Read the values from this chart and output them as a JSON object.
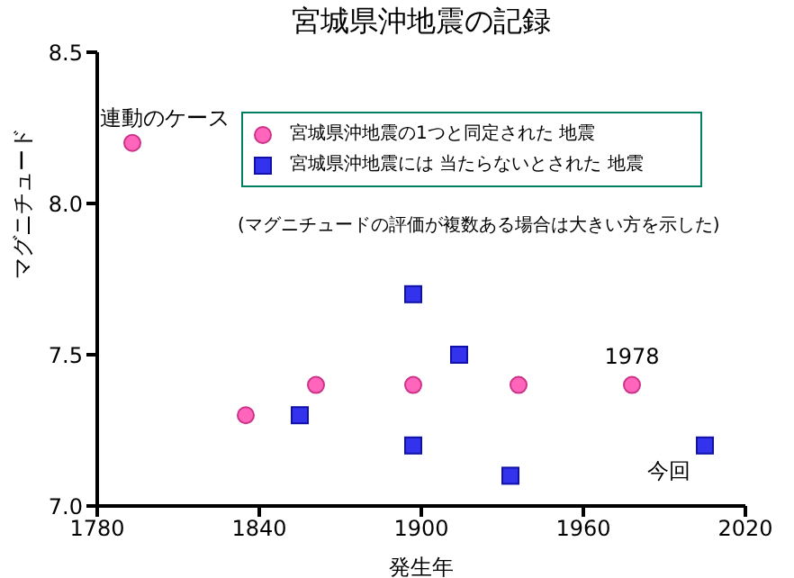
{
  "chart_data": {
    "type": "scatter",
    "title": "宮城県沖地震の記録",
    "xlabel": "発生年",
    "ylabel": "マグニチュード",
    "xlim": [
      1780,
      2020
    ],
    "xticks": [
      1780,
      1840,
      1900,
      1960,
      2020
    ],
    "ylim": [
      7.0,
      8.5
    ],
    "yticks": [
      {
        "value": 7.0,
        "label": "7.0"
      },
      {
        "value": 7.5,
        "label": "7.5"
      },
      {
        "value": 8.0,
        "label": "8.0"
      },
      {
        "value": 8.5,
        "label": "8.5"
      }
    ],
    "grid": false,
    "legend": "top right",
    "series": [
      {
        "name": "宮城県沖地震の1つと同定された 地震",
        "color": "#ff66bb",
        "marker": "circle",
        "x": [
          1793,
          1835,
          1861,
          1897,
          1936,
          1978
        ],
        "values": [
          8.2,
          7.3,
          7.4,
          7.4,
          7.4,
          7.4
        ]
      },
      {
        "name": "宮城県沖地震には 当たらないとされた 地震",
        "color": "#3333ee",
        "marker": "square",
        "x": [
          1855,
          1897,
          1914,
          1897,
          1933,
          2005
        ],
        "values": [
          7.3,
          7.7,
          7.5,
          7.2,
          7.1,
          7.2
        ]
      }
    ],
    "annotations": [
      {
        "text": "連動のケース",
        "x": 1793,
        "y": 8.2
      },
      {
        "text": "1978",
        "x": 1978,
        "y": 7.4
      },
      {
        "text": "今回",
        "x": 2005,
        "y": 7.2
      },
      "(マグニチュードの評価が複数ある場合は大きい方を示した)"
    ]
  }
}
